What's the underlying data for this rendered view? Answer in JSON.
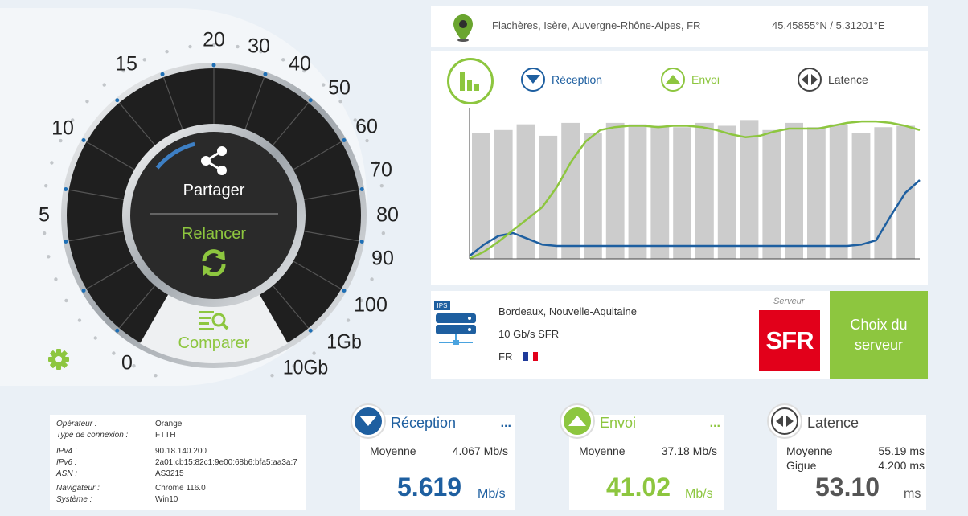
{
  "location": {
    "city": "Flachères, Isère, Auvergne-Rhône-Alpes, FR",
    "coords": "45.45855°N / 5.31201°E",
    "icon": "map-pin-icon"
  },
  "gauge": {
    "labels": [
      "0",
      "5",
      "10",
      "15",
      "20",
      "30",
      "40",
      "50",
      "60",
      "70",
      "80",
      "90",
      "100",
      "1Gb",
      "10Gb"
    ],
    "share_label": "Partager",
    "restart_label": "Relancer",
    "compare_label": "Comparer"
  },
  "chart": {
    "legend_reception": "Réception",
    "legend_envoi": "Envoi",
    "legend_latence": "Latence",
    "colors": {
      "reception": "#1e5fa0",
      "envoi": "#8dc63f",
      "latence": "#cccccc"
    }
  },
  "chart_data": {
    "type": "line",
    "title": "",
    "xlabel": "",
    "ylabel": "",
    "series": [
      {
        "name": "Réception",
        "color": "#1e5fa0",
        "values": [
          0.02,
          0.1,
          0.16,
          0.18,
          0.14,
          0.1,
          0.09,
          0.09,
          0.09,
          0.09,
          0.09,
          0.09,
          0.09,
          0.09,
          0.09,
          0.09,
          0.09,
          0.09,
          0.09,
          0.09,
          0.09,
          0.09,
          0.09,
          0.09,
          0.09,
          0.09,
          0.09,
          0.1,
          0.13,
          0.3,
          0.46,
          0.55
        ]
      },
      {
        "name": "Envoi",
        "color": "#8dc63f",
        "values": [
          0.0,
          0.05,
          0.12,
          0.2,
          0.28,
          0.36,
          0.5,
          0.68,
          0.82,
          0.9,
          0.92,
          0.93,
          0.93,
          0.92,
          0.93,
          0.93,
          0.92,
          0.9,
          0.87,
          0.85,
          0.86,
          0.89,
          0.91,
          0.91,
          0.91,
          0.93,
          0.95,
          0.96,
          0.96,
          0.95,
          0.93,
          0.9
        ]
      },
      {
        "name": "Latence",
        "color": "#cccccc",
        "values": [
          0.88,
          0.9,
          0.94,
          0.86,
          0.95,
          0.88,
          0.95,
          0.94,
          0.93,
          0.92,
          0.95,
          0.93,
          0.97,
          0.9,
          0.95,
          0.92,
          0.94,
          0.88,
          0.92,
          0.93
        ]
      }
    ]
  },
  "server": {
    "label": "Serveur",
    "city": "Bordeaux, Nouvelle-Aquitaine",
    "speed": "10 Gb/s SFR",
    "country": "FR",
    "ips_label": "IPS",
    "logo_text": "SFR",
    "choose_label_1": "Choix du",
    "choose_label_2": "serveur"
  },
  "info": [
    {
      "key": "Opérateur :",
      "value": "Orange"
    },
    {
      "key": "Type de connexion :",
      "value": "FTTH"
    },
    {
      "key": "IPv4 :",
      "value": "90.18.140.200"
    },
    {
      "key": "IPv6 :",
      "value": "2a01:cb15:82c1:9e00:68b6:bfa5:aa3a:7"
    },
    {
      "key": "ASN :",
      "value": "AS3215"
    },
    {
      "key": "Navigateur :",
      "value": "Chrome 116.0"
    },
    {
      "key": "Système :",
      "value": "Win10"
    }
  ],
  "results": {
    "reception": {
      "title": "Réception",
      "dots": "...",
      "avg_label": "Moyenne",
      "avg_value": "4.067 Mb/s",
      "value": "5.619",
      "unit": "Mb/s",
      "color": "#1e5fa0"
    },
    "envoi": {
      "title": "Envoi",
      "dots": "...",
      "avg_label": "Moyenne",
      "avg_value": "37.18 Mb/s",
      "value": "41.02",
      "unit": "Mb/s",
      "color": "#8dc63f"
    },
    "latence": {
      "title": "Latence",
      "avg_label": "Moyenne",
      "avg_value": "55.19 ms",
      "jitter_label": "Gigue",
      "jitter_value": "4.200 ms",
      "value": "53.10",
      "unit": "ms",
      "color": "#444444"
    }
  }
}
